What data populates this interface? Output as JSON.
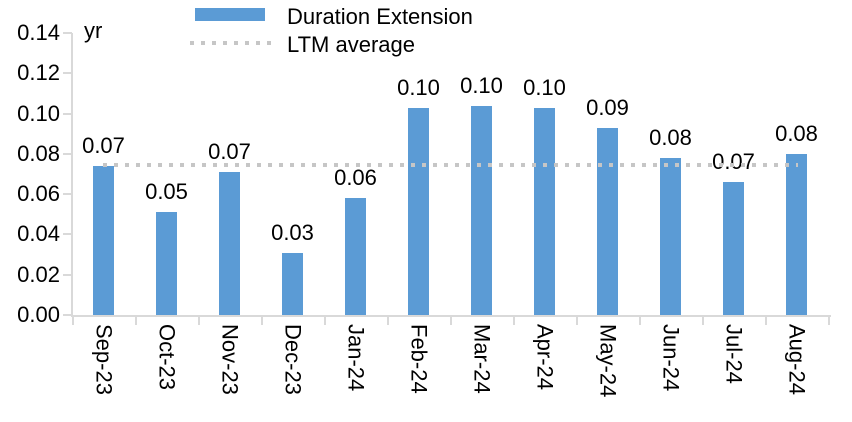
{
  "unit_label": "yr",
  "legend": {
    "items": [
      {
        "label": "Duration Extension",
        "swatch": "bar"
      },
      {
        "label": "LTM average",
        "swatch": "dotted-line"
      }
    ]
  },
  "chart_data": {
    "type": "bar",
    "title": "",
    "ylabel": "yr",
    "categories": [
      "Sep-23",
      "Oct-23",
      "Nov-23",
      "Dec-23",
      "Jan-24",
      "Feb-24",
      "Mar-24",
      "Apr-24",
      "May-24",
      "Jun-24",
      "Jul-24",
      "Aug-24"
    ],
    "series": [
      {
        "name": "Duration Extension",
        "type": "bar",
        "color": "#5B9BD5",
        "values": [
          0.074,
          0.051,
          0.071,
          0.031,
          0.058,
          0.103,
          0.104,
          0.103,
          0.093,
          0.078,
          0.066,
          0.08
        ],
        "data_labels": [
          "0.07",
          "0.05",
          "0.07",
          "0.03",
          "0.06",
          "0.10",
          "0.10",
          "0.10",
          "0.09",
          "0.08",
          "0.07",
          "0.08"
        ]
      },
      {
        "name": "LTM average",
        "type": "line",
        "line_style": "dotted",
        "color": "#C6C6C6",
        "value": 0.0745
      }
    ],
    "ylim": [
      0,
      0.14
    ],
    "ytick_step": 0.02,
    "ytick_labels": [
      "0.00",
      "0.02",
      "0.04",
      "0.06",
      "0.08",
      "0.10",
      "0.12",
      "0.14"
    ],
    "grid": false,
    "legend_position": "top-center",
    "bar_label_position": "outside-end",
    "x_tick_label_rotation": 90
  },
  "colors": {
    "bar": "#5B9BD5",
    "ltm_line": "#C6C6C6",
    "axis": "#D9D9D9",
    "text": "#000000",
    "background": "#FFFFFF"
  }
}
